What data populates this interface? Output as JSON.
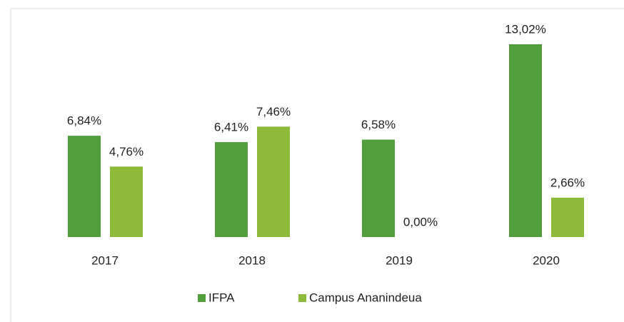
{
  "chart_data": {
    "type": "bar",
    "categories": [
      "2017",
      "2018",
      "2019",
      "2020"
    ],
    "series": [
      {
        "name": "IFPA",
        "color": "#529e3c",
        "values": [
          6.84,
          6.41,
          6.58,
          13.02
        ],
        "value_labels": [
          "6,84%",
          "6,41%",
          "6,58%",
          "13,02%"
        ]
      },
      {
        "name": "Campus Ananindeua",
        "color": "#8dba38",
        "values": [
          4.76,
          7.46,
          0,
          2.66
        ],
        "value_labels": [
          "4,76%",
          "7,46%",
          "0,00%",
          "2,66%"
        ]
      }
    ],
    "legend": "bottom"
  }
}
